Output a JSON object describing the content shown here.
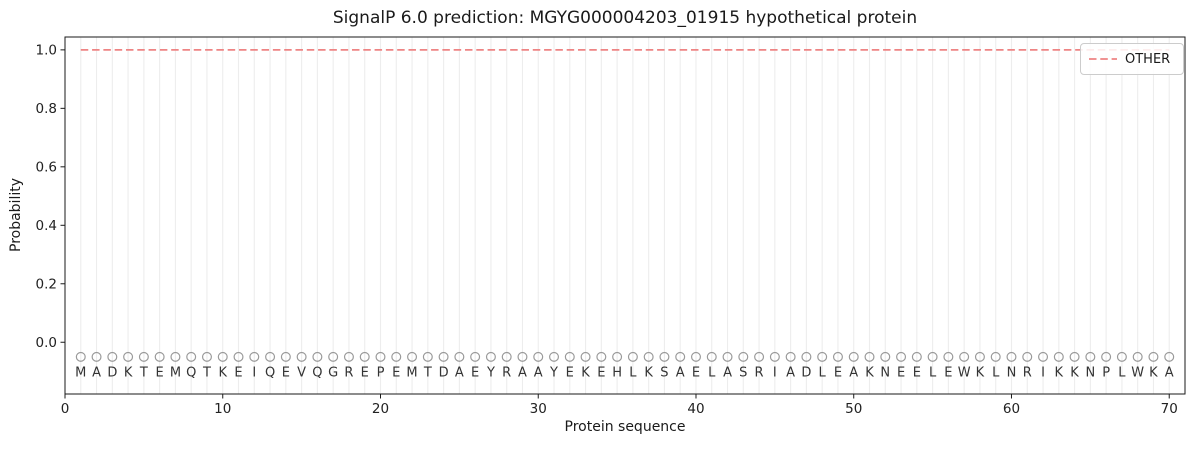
{
  "chart_data": {
    "type": "line",
    "title": "SignalP 6.0 prediction: MGYG000004203_01915 hypothetical protein",
    "xlabel": "Protein sequence",
    "ylabel": "Probability",
    "xlim": [
      0,
      71
    ],
    "ylim": [
      -0.177,
      1.044
    ],
    "x_ticks": [
      0,
      10,
      20,
      30,
      40,
      50,
      60,
      70
    ],
    "y_ticks": [
      "0.0",
      "0.2",
      "0.4",
      "0.6",
      "0.8",
      "1.0"
    ],
    "grid": {
      "vertical_per_residue": true,
      "horizontal": false
    },
    "sequence": "MADKTEMQTKEIQEVQGREPEMTDAEYRAAYEKEHLKSAELASRIADLEAKNEELEWKLNRIKKNPLWKA",
    "series": [
      {
        "name": "OTHER",
        "style": "dashed",
        "color": "#ee8484",
        "y_value": 1.0,
        "x_start": 1,
        "x_end": 70
      }
    ],
    "residue_markers": {
      "shape": "open-circle",
      "y_value": -0.05,
      "color": "#9a9a9a"
    },
    "sequence_letters_y": -0.1,
    "legend": {
      "position": "upper-right",
      "entries": [
        {
          "label": "OTHER",
          "style": "dashed",
          "color": "#ee8484"
        }
      ]
    },
    "colors": {
      "background": "#ffffff",
      "gridline": "#ededed",
      "spine": "#1a1a1a",
      "tick_text": "#222222",
      "sequence_letters": "#333333"
    }
  }
}
